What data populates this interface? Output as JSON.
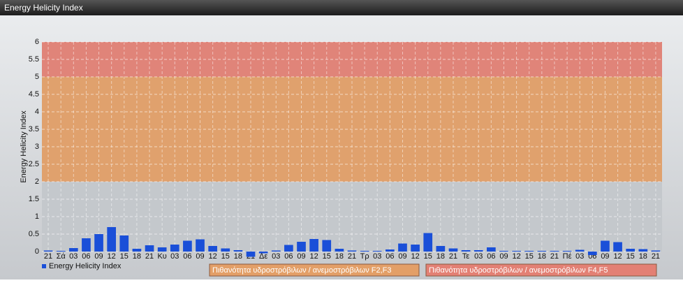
{
  "chart_data": {
    "type": "bar",
    "title": "Energy Helicity Index",
    "y_label": "Energy Helicity Index",
    "categories": [
      "21",
      "Σά",
      "03",
      "06",
      "09",
      "12",
      "15",
      "18",
      "21",
      "Κυ",
      "03",
      "06",
      "09",
      "12",
      "15",
      "18",
      "21",
      "Δε",
      "03",
      "06",
      "09",
      "12",
      "15",
      "18",
      "21",
      "Τρ",
      "03",
      "06",
      "09",
      "12",
      "15",
      "18",
      "21",
      "Τε",
      "03",
      "06",
      "09",
      "12",
      "15",
      "18",
      "21",
      "Πέ",
      "03",
      "06",
      "09",
      "12",
      "15",
      "18",
      "21"
    ],
    "series": [
      {
        "name": "Energy Helicity Index",
        "color": "#1a4fd8",
        "values": [
          0.03,
          0.02,
          0.1,
          0.38,
          0.5,
          0.7,
          0.46,
          0.08,
          0.18,
          0.12,
          0.2,
          0.31,
          0.35,
          0.16,
          0.09,
          0.04,
          -0.15,
          -0.05,
          0.03,
          0.19,
          0.28,
          0.36,
          0.33,
          0.08,
          0.03,
          0.02,
          0.02,
          0.06,
          0.23,
          0.2,
          0.53,
          0.16,
          0.09,
          0.04,
          0.04,
          0.12,
          0.02,
          0.02,
          0.02,
          0.02,
          0.02,
          0.02,
          0.05,
          -0.1,
          0.31,
          0.27,
          0.08,
          0.07,
          0.03
        ]
      }
    ],
    "bands": [
      {
        "from": 2,
        "to": 5,
        "color": "#e59a5c",
        "label": "Πιθανότητα υδροστρόβιλων / ανεμοστρόβιλων F2,F3"
      },
      {
        "from": 5,
        "to": 6,
        "color": "#e5786a",
        "label": "Πιθανότητα υδροστρόβιλων / ανεμοστρόβιλων F4,F5"
      }
    ],
    "ylim": [
      0,
      6
    ],
    "yticks": [
      0,
      0.5,
      1,
      1.5,
      2,
      2.5,
      3,
      3.5,
      4,
      4.5,
      5,
      5.5,
      6
    ],
    "grid": true
  }
}
